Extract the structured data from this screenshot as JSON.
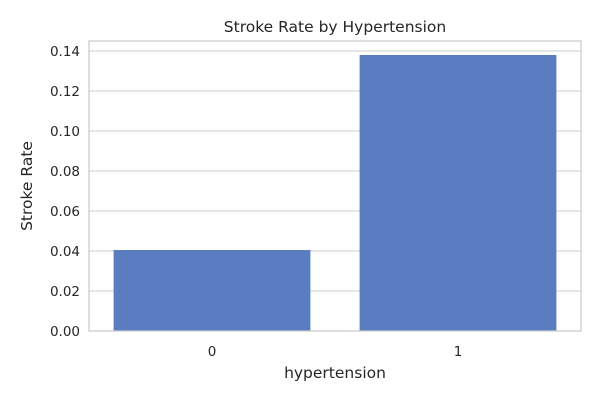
{
  "chart_data": {
    "type": "bar",
    "title": "Stroke Rate by Hypertension",
    "xlabel": "hypertension",
    "ylabel": "Stroke Rate",
    "categories": [
      "0",
      "1"
    ],
    "values": [
      0.0405,
      0.138
    ],
    "ylim": [
      0,
      0.145
    ],
    "yticks": [
      0.0,
      0.02,
      0.04,
      0.06,
      0.08,
      0.1,
      0.12,
      0.14
    ],
    "ytick_labels": [
      "0.00",
      "0.02",
      "0.04",
      "0.06",
      "0.08",
      "0.10",
      "0.12",
      "0.14"
    ],
    "grid": true,
    "bar_color": "#5a7dc2"
  }
}
